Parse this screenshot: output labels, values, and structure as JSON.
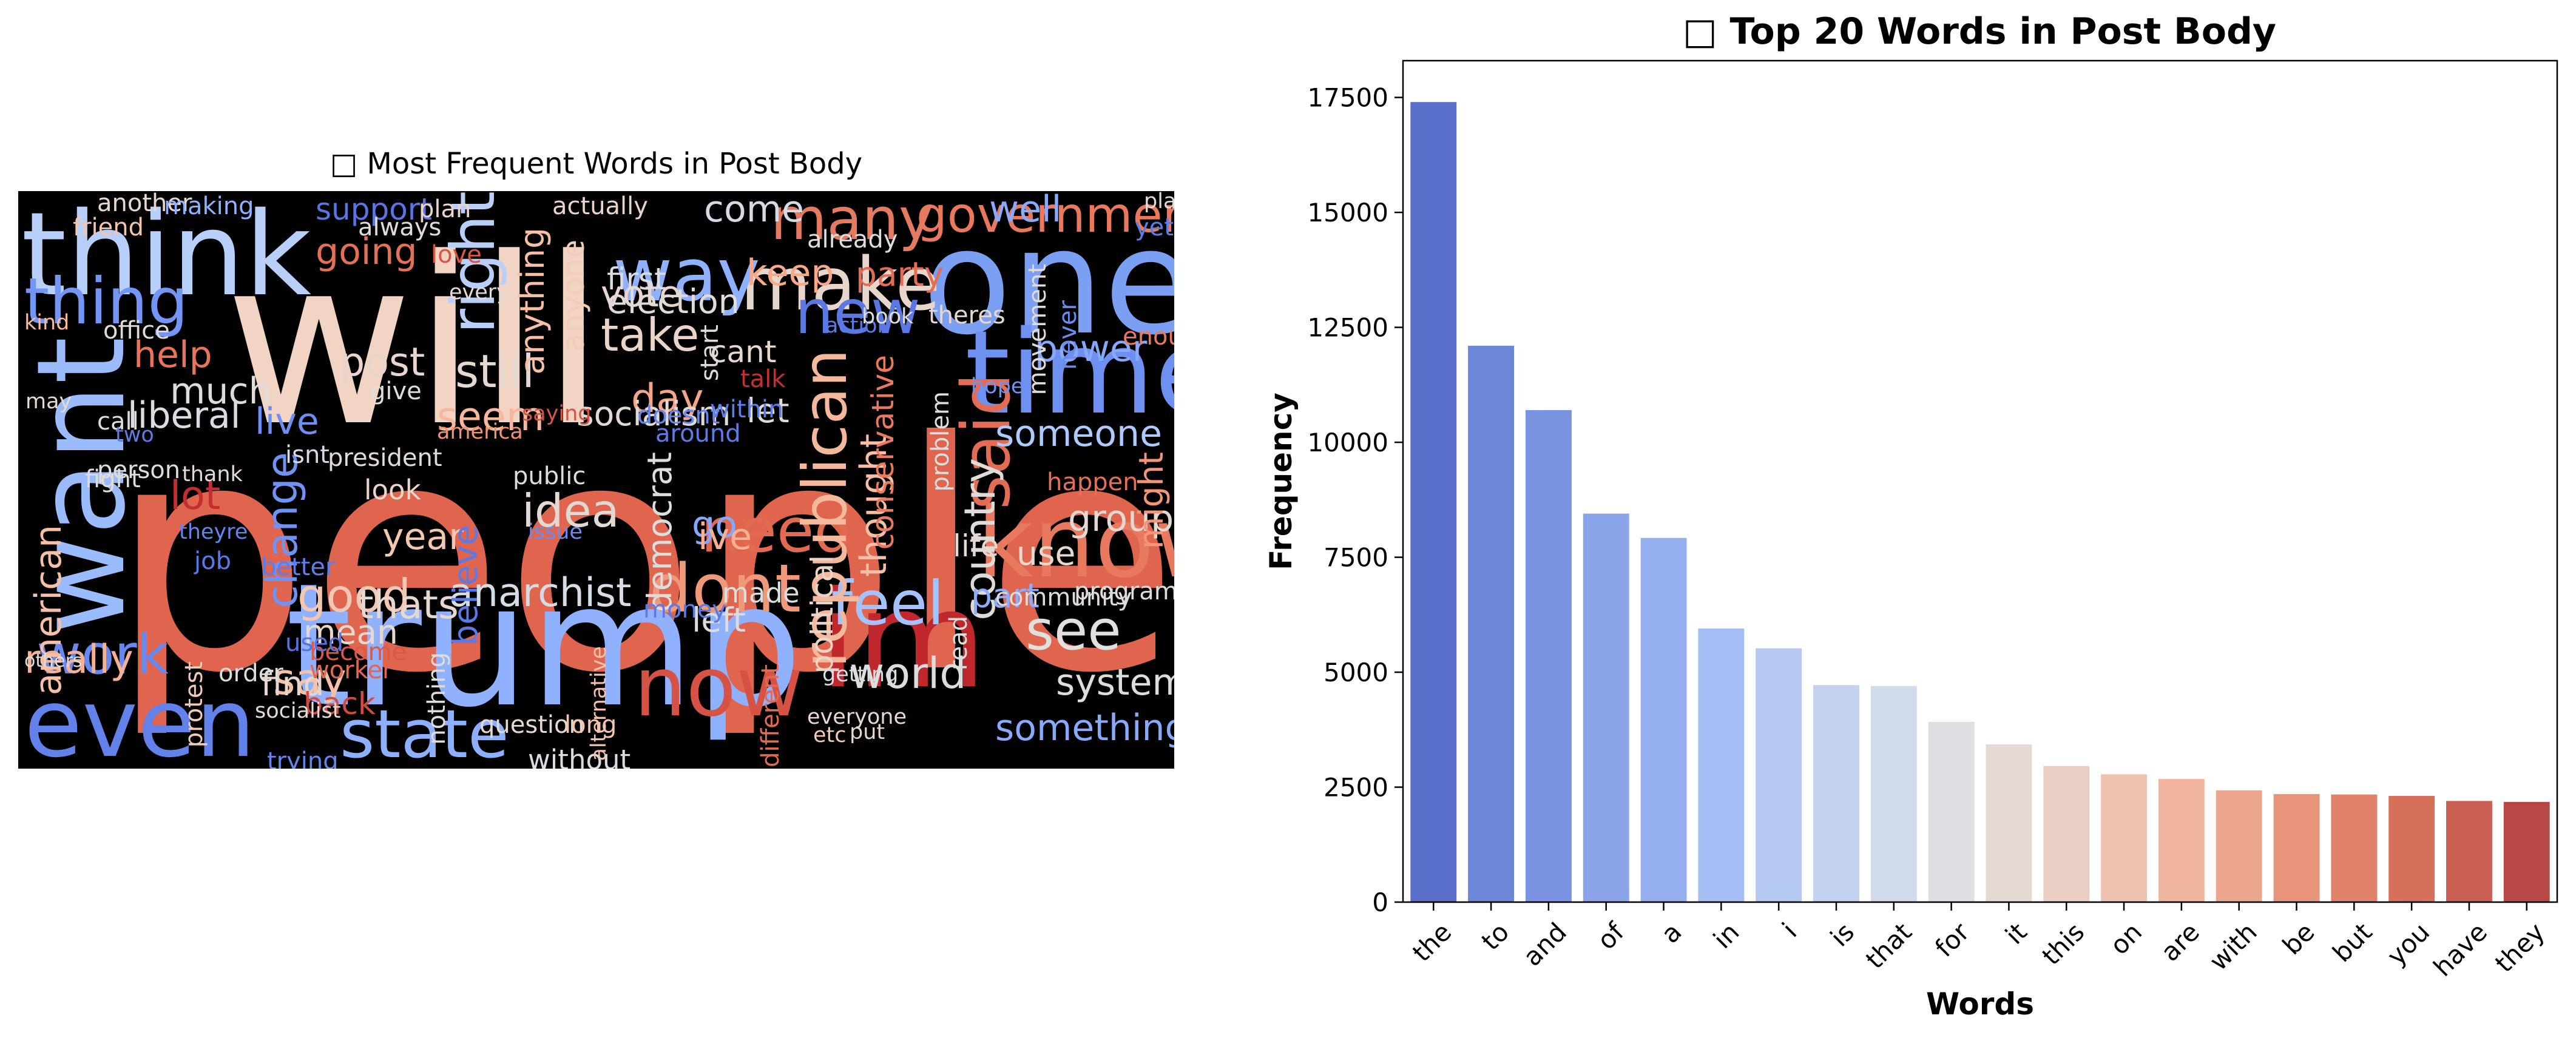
{
  "chart_data": [
    {
      "type": "wordcloud",
      "title": "□ Most Frequent Words in Post Body",
      "background": "#000000",
      "words": [
        {
          "t": "people",
          "c": "#e0654f"
        },
        {
          "t": "will",
          "c": "#f2d4c4"
        },
        {
          "t": "one",
          "c": "#7b9ff2"
        },
        {
          "t": "trump",
          "c": "#8fb1fe"
        },
        {
          "t": "think",
          "c": "#b8d0f9"
        },
        {
          "t": "time",
          "c": "#6e90f0"
        },
        {
          "t": "want",
          "c": "#9abbfc"
        },
        {
          "t": "im",
          "c": "#c0282e"
        },
        {
          "t": "know",
          "c": "#e8795e"
        },
        {
          "t": "even",
          "c": "#6282ea"
        },
        {
          "t": "now",
          "c": "#d65244"
        },
        {
          "t": "state",
          "c": "#8db0fe"
        },
        {
          "t": "many",
          "c": "#e47b61"
        },
        {
          "t": "make",
          "c": "#e8d6cc"
        },
        {
          "t": "thing",
          "c": "#7395f5"
        },
        {
          "t": "feel",
          "c": "#a3c2fe"
        },
        {
          "t": "way",
          "c": "#8eb2fd"
        },
        {
          "t": "government",
          "c": "#e9785d"
        },
        {
          "t": "dont",
          "c": "#f0987a"
        },
        {
          "t": "need",
          "c": "#e26a51"
        },
        {
          "t": "see",
          "c": "#e2e0df"
        },
        {
          "t": "new",
          "c": "#5a78e4"
        },
        {
          "t": "work",
          "c": "#6788ee"
        },
        {
          "t": "said",
          "c": "#e36c55"
        },
        {
          "t": "right",
          "c": "#b9cff8"
        },
        {
          "t": "republican",
          "c": "#f4b99c"
        },
        {
          "t": "world",
          "c": "#dcdddd"
        },
        {
          "t": "something",
          "c": "#88aafc"
        },
        {
          "t": "going",
          "c": "#e57058"
        },
        {
          "t": "take",
          "c": "#ead4c8"
        },
        {
          "t": "still",
          "c": "#e5d8d1"
        },
        {
          "t": "post",
          "c": "#e9d5cb"
        },
        {
          "t": "much",
          "c": "#dfdbd9"
        },
        {
          "t": "day",
          "c": "#f4a688"
        },
        {
          "t": "good",
          "c": "#f3c7b1"
        },
        {
          "t": "say",
          "c": "#f5c2a8"
        },
        {
          "t": "thats",
          "c": "#e6d7cf"
        },
        {
          "t": "anarchist",
          "c": "#d6dce4"
        },
        {
          "t": "system",
          "c": "#dcdddd"
        },
        {
          "t": "country",
          "c": "#dfdbd9"
        },
        {
          "t": "idea",
          "c": "#e3d9d3"
        },
        {
          "t": "group",
          "c": "#e5d8d1"
        },
        {
          "t": "really",
          "c": "#f4b294"
        },
        {
          "t": "year",
          "c": "#f3c8b2"
        },
        {
          "t": "seem",
          "c": "#f6b89c"
        },
        {
          "t": "live",
          "c": "#6c8ff1"
        },
        {
          "t": "help",
          "c": "#e7745b"
        },
        {
          "t": "vote",
          "c": "#e8d6cc"
        },
        {
          "t": "come",
          "c": "#d5dbe5"
        },
        {
          "t": "keep",
          "c": "#f7a889"
        },
        {
          "t": "party",
          "c": "#e36c55"
        },
        {
          "t": "election",
          "c": "#e1dad6"
        },
        {
          "t": "first",
          "c": "#dadce0"
        },
        {
          "t": "socialism",
          "c": "#e3d9d3"
        },
        {
          "t": "liberal",
          "c": "#d9dce1"
        },
        {
          "t": "lot",
          "c": "#c32e31"
        },
        {
          "t": "change",
          "c": "#6f92f3"
        },
        {
          "t": "american",
          "c": "#f5c0a7"
        },
        {
          "t": "believe",
          "c": "#5b7ae5"
        },
        {
          "t": "democrat",
          "c": "#dcdddd"
        },
        {
          "t": "thought",
          "c": "#f6bea4"
        },
        {
          "t": "go",
          "c": "#85a8fc"
        },
        {
          "t": "ive",
          "c": "#f7b093"
        },
        {
          "t": "life",
          "c": "#e5d8d1"
        },
        {
          "t": "power",
          "c": "#86a9fc"
        },
        {
          "t": "well",
          "c": "#88abfd"
        },
        {
          "t": "might",
          "c": "#f39577"
        },
        {
          "t": "someone",
          "c": "#aec9fc"
        },
        {
          "t": "part",
          "c": "#8badfd"
        },
        {
          "t": "use",
          "c": "#e6d7cf"
        },
        {
          "t": "left",
          "c": "#dadce0"
        },
        {
          "t": "find",
          "c": "#e9d5cb"
        },
        {
          "t": "mean",
          "c": "#e7d7ce"
        },
        {
          "t": "back",
          "c": "#d24b40"
        },
        {
          "t": "support",
          "c": "#5875e1"
        },
        {
          "t": "anything",
          "c": "#f6bfa6"
        },
        {
          "t": "anyone",
          "c": "#f1cdba"
        },
        {
          "t": "cant",
          "c": "#e8d6cc"
        },
        {
          "t": "let",
          "c": "#e1dad6"
        },
        {
          "t": "conservative",
          "c": "#e97a5f"
        },
        {
          "t": "political",
          "c": "#ebd3c6"
        },
        {
          "t": "without",
          "c": "#d9dce1"
        },
        {
          "t": "question",
          "c": "#e6d7cf"
        },
        {
          "t": "long",
          "c": "#f4c5ad"
        },
        {
          "t": "made",
          "c": "#dcdddd"
        },
        {
          "t": "public",
          "c": "#dadce0"
        },
        {
          "t": "issue",
          "c": "#6a8bef"
        },
        {
          "t": "look",
          "c": "#ead5c9"
        },
        {
          "t": "thank",
          "c": "#e4d9d2"
        },
        {
          "t": "president",
          "c": "#e0dbd8"
        },
        {
          "t": "america",
          "c": "#f29274"
        },
        {
          "t": "isnt",
          "c": "#d4dbe6"
        },
        {
          "t": "person",
          "c": "#dcdddd"
        },
        {
          "t": "fight",
          "c": "#dfdbd9"
        },
        {
          "t": "job",
          "c": "#5b7ae5"
        },
        {
          "t": "theyre",
          "c": "#6485ec"
        },
        {
          "t": "better",
          "c": "#5e7de7"
        },
        {
          "t": "order",
          "c": "#dcdddd"
        },
        {
          "t": "others",
          "c": "#dadce0"
        },
        {
          "t": "become",
          "c": "#d95847"
        },
        {
          "t": "worker",
          "c": "#e16751"
        },
        {
          "t": "used",
          "c": "#5572df"
        },
        {
          "t": "trying",
          "c": "#6485ec"
        },
        {
          "t": "socialist",
          "c": "#e1dad6"
        },
        {
          "t": "protest",
          "c": "#f2cbb7"
        },
        {
          "t": "nothing",
          "c": "#e0dbd8"
        },
        {
          "t": "alternative",
          "c": "#f5c1a9"
        },
        {
          "t": "different",
          "c": "#e26952"
        },
        {
          "t": "getting",
          "c": "#d9dce1"
        },
        {
          "t": "everyone",
          "c": "#e7d7ce"
        },
        {
          "t": "put",
          "c": "#e8d6cc"
        },
        {
          "t": "etc",
          "c": "#f2cab5"
        },
        {
          "t": "read",
          "c": "#dcdddd"
        },
        {
          "t": "community",
          "c": "#dfdbd9"
        },
        {
          "t": "program",
          "c": "#e0dbd8"
        },
        {
          "t": "money",
          "c": "#5b7ae5"
        },
        {
          "t": "within",
          "c": "#5e7de7"
        },
        {
          "t": "around",
          "c": "#5d7ce6"
        },
        {
          "t": "doesnt",
          "c": "#6687ed"
        },
        {
          "t": "saying",
          "c": "#d75445"
        },
        {
          "t": "plan",
          "c": "#e9d5cb"
        },
        {
          "t": "actually",
          "c": "#ead4c8"
        },
        {
          "t": "another",
          "c": "#e7d7ce"
        },
        {
          "t": "making",
          "c": "#8fb1fe"
        },
        {
          "t": "always",
          "c": "#e0dbd8"
        },
        {
          "t": "love",
          "c": "#d85646"
        },
        {
          "t": "office",
          "c": "#e1dad6"
        },
        {
          "t": "friend",
          "c": "#f5c4ac"
        },
        {
          "t": "kind",
          "c": "#f7b89c"
        },
        {
          "t": "may",
          "c": "#e6d7cf"
        },
        {
          "t": "call",
          "c": "#dcdddd"
        },
        {
          "t": "two",
          "c": "#5d7ce6"
        },
        {
          "t": "give",
          "c": "#e0dbd8"
        },
        {
          "t": "every",
          "c": "#e1dad6"
        },
        {
          "t": "already",
          "c": "#dcdddd"
        },
        {
          "t": "theres",
          "c": "#e5d8d1"
        },
        {
          "t": "action",
          "c": "#5b7ae5"
        },
        {
          "t": "book",
          "c": "#e0dbd8"
        },
        {
          "t": "hope",
          "c": "#6f92f3"
        },
        {
          "t": "movement",
          "c": "#e1dad6"
        },
        {
          "t": "never",
          "c": "#6a8bef"
        },
        {
          "t": "yet",
          "c": "#5d7ce6"
        },
        {
          "t": "place",
          "c": "#e3d9d3"
        },
        {
          "t": "enough",
          "c": "#e9785d"
        },
        {
          "t": "talk",
          "c": "#c43032"
        },
        {
          "t": "start",
          "c": "#e0dbd8"
        },
        {
          "t": "happen",
          "c": "#e57058"
        },
        {
          "t": "problem",
          "c": "#dcdddd"
        }
      ]
    },
    {
      "type": "bar",
      "title": "□ Top 20 Words in Post Body",
      "xlabel": "Words",
      "ylabel": "Frequency",
      "ylim": [
        0,
        18300
      ],
      "yticks": [
        0,
        2500,
        5000,
        7500,
        10000,
        12500,
        15000,
        17500
      ],
      "categories": [
        "the",
        "to",
        "and",
        "of",
        "a",
        "in",
        "i",
        "is",
        "that",
        "for",
        "it",
        "this",
        "on",
        "are",
        "with",
        "be",
        "but",
        "you",
        "have",
        "they"
      ],
      "values": [
        17400,
        12100,
        10700,
        8450,
        7920,
        5950,
        5520,
        4720,
        4700,
        3920,
        3430,
        2960,
        2780,
        2680,
        2430,
        2350,
        2340,
        2310,
        2200,
        2180
      ],
      "colors": [
        "#5a6fca",
        "#6c86d8",
        "#7b94e1",
        "#8aa5ea",
        "#96b0ef",
        "#a4bdf2",
        "#b4c8f2",
        "#c3d2ef",
        "#d2dbeb",
        "#dddfe3",
        "#e4d9d3",
        "#eacec3",
        "#edc3b0",
        "#efb59e",
        "#eba68d",
        "#e7947b",
        "#e1836a",
        "#d7705b",
        "#c95e52",
        "#b84846"
      ],
      "grid": false
    }
  ]
}
